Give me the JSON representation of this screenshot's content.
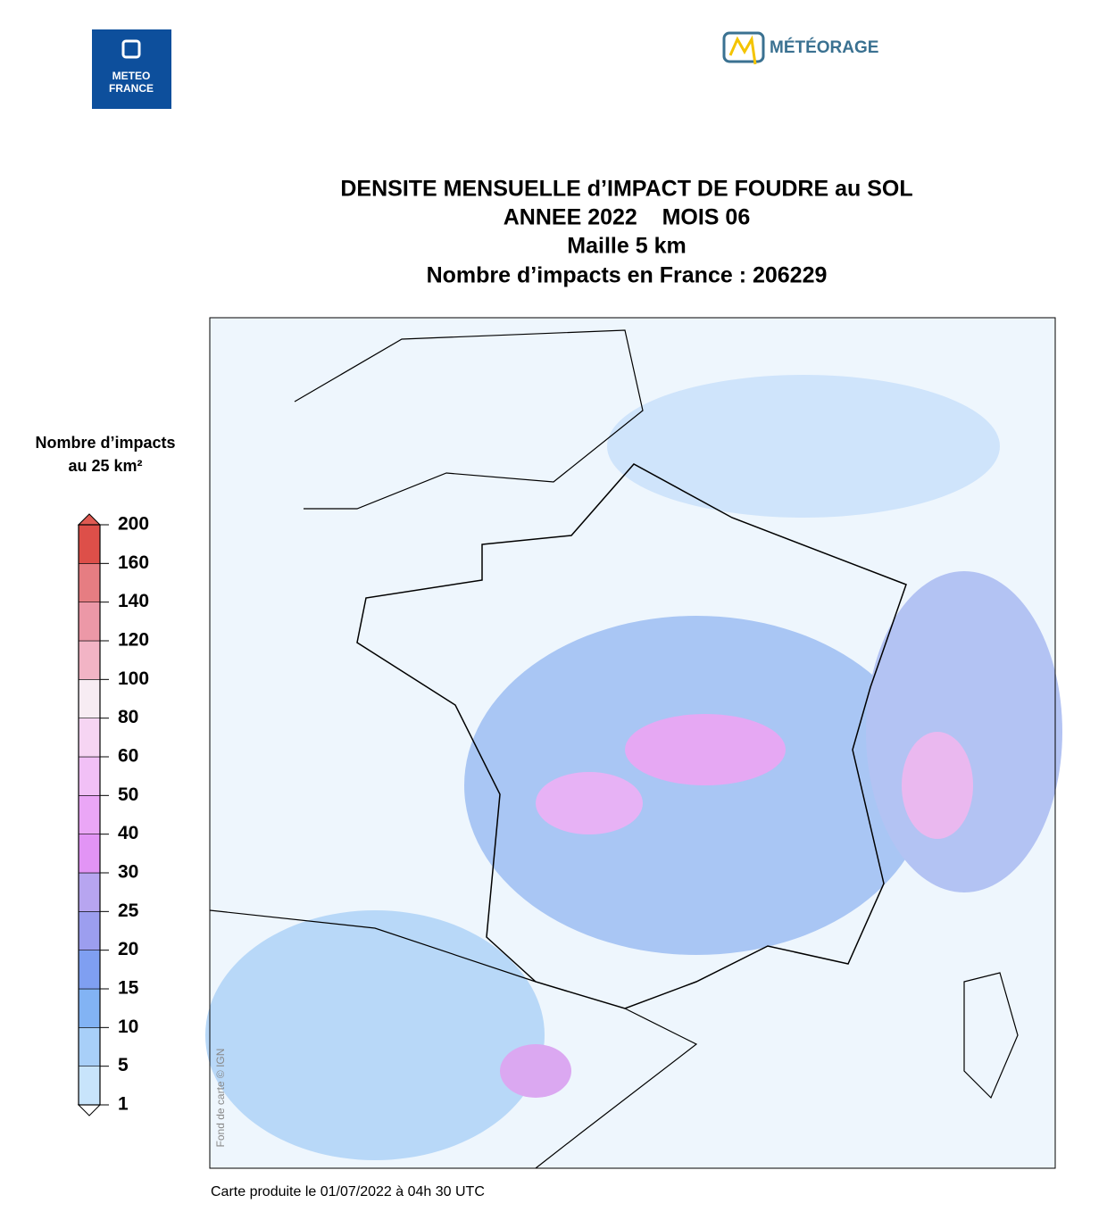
{
  "logos": {
    "meteo_france": [
      "METEO",
      "FRANCE"
    ],
    "meteorage": "MÉTÉORAGE"
  },
  "title": [
    "DENSITE MENSUELLE d’IMPACT DE FOUDRE au SOL",
    "ANNEE 2022    MOIS 06",
    "Maille 5 km",
    "Nombre d’impacts en France : 206229"
  ],
  "legend": {
    "title": [
      "Nombre d’impacts",
      "au 25 km²"
    ],
    "levels": [
      1,
      5,
      10,
      15,
      20,
      25,
      30,
      40,
      50,
      60,
      80,
      100,
      120,
      140,
      160,
      200
    ],
    "colors": [
      "#c8e4fb",
      "#a8cff8",
      "#82b3f4",
      "#7f9ff1",
      "#9c9eef",
      "#b7a5f0",
      "#e294f5",
      "#eaa6f6",
      "#f1c0f6",
      "#f6d5f3",
      "#f7ecf3",
      "#f2b4c5",
      "#ec98a7",
      "#e67d82",
      "#dd4f49"
    ],
    "over_color": "#df5a52",
    "under_color": "#ffffff"
  },
  "map_credit": "Fond de carte © IGN",
  "footer": "Carte produite le 01/07/2022 à 04h 30 UTC"
}
